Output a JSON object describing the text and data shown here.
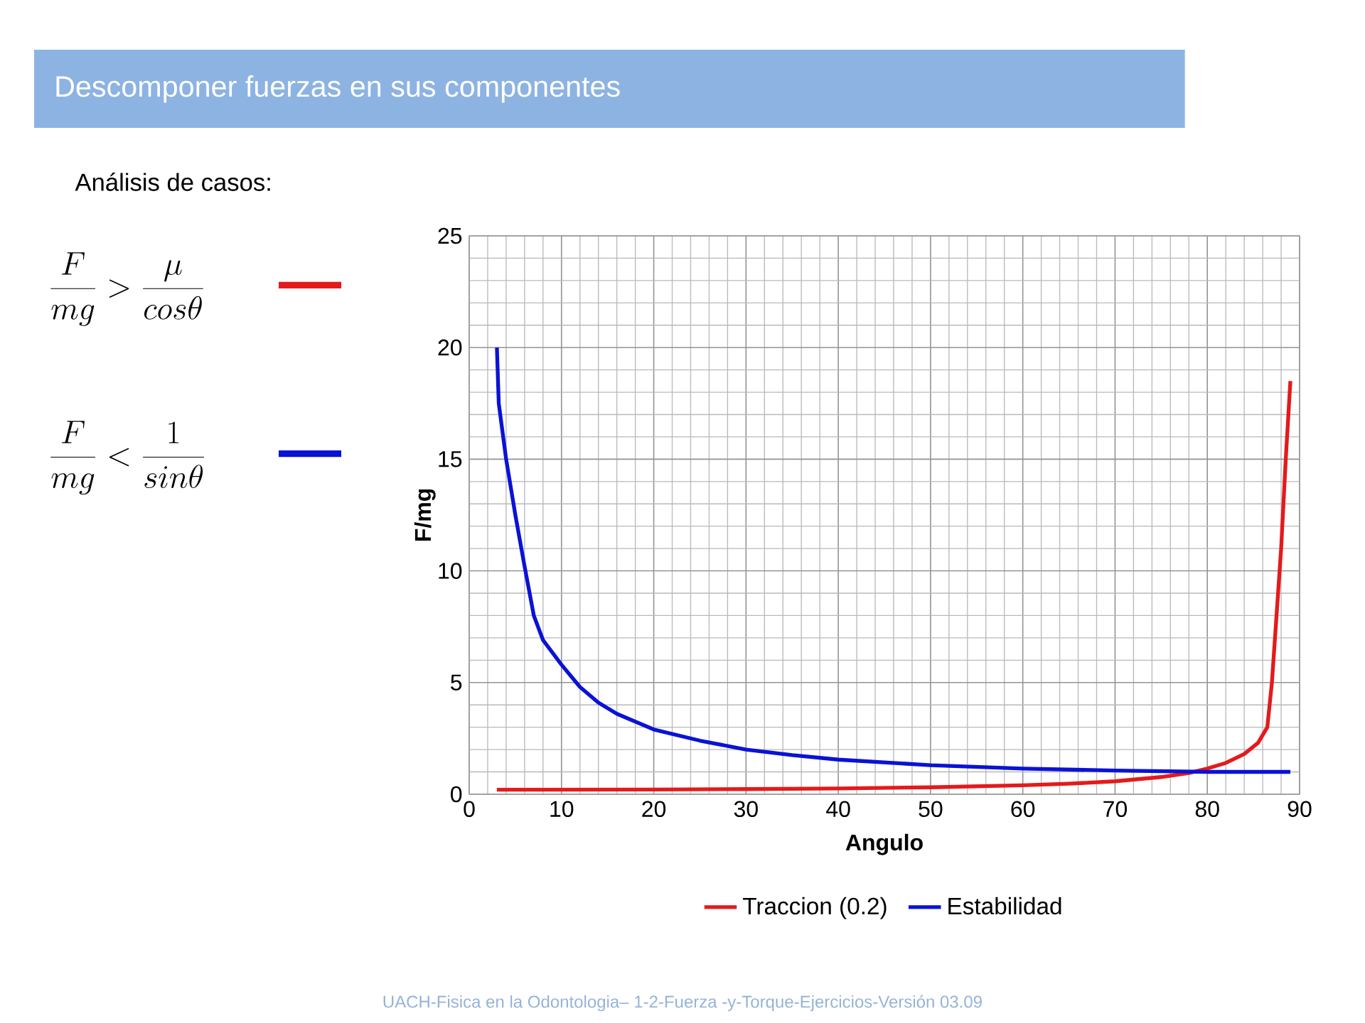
{
  "chart_data": {
    "type": "line",
    "title": "Descomponer fuerzas en sus componentes",
    "xlabel": "Angulo",
    "ylabel": "F/mg",
    "annotations": [
      "Análisis de casos:",
      "\\frac{F}{mg} > \\frac{\\mu}{cos\\theta}",
      "\\frac{F}{mg} < \\frac{1}{sin\\theta}",
      "UACH-Fisica en la Odontologia– 1-2-Fuerza -y-Torque-Ejercicios-Versión 03.09"
    ],
    "xlim": [
      0,
      90
    ],
    "ylim": [
      0,
      25
    ],
    "xticks": [
      0,
      10,
      20,
      30,
      40,
      50,
      60,
      70,
      80,
      90
    ],
    "yticks": [
      0,
      5,
      10,
      15,
      20,
      25
    ],
    "grid": true,
    "legend": "bottom",
    "marker": "none",
    "line_style": "solid",
    "series": [
      {
        "name": "Traccion (0.2)",
        "color": "#e41a1c",
        "x": [
          3,
          20,
          30,
          40,
          50,
          60,
          65,
          70,
          75,
          78,
          80,
          82,
          84,
          85.5,
          86.5,
          87,
          87.5,
          88,
          88.5,
          89
        ],
        "values": [
          0.2,
          0.21,
          0.23,
          0.26,
          0.31,
          0.4,
          0.47,
          0.58,
          0.77,
          0.95,
          1.15,
          1.4,
          1.8,
          2.3,
          3,
          5,
          8,
          11,
          15,
          18.5
        ]
      },
      {
        "name": "Estabilidad",
        "color": "#0a12d6",
        "x": [
          3,
          3.2,
          4,
          5,
          6,
          7,
          8,
          10,
          12,
          14,
          16,
          20,
          25,
          30,
          35,
          40,
          50,
          60,
          70,
          80,
          89
        ],
        "values": [
          20,
          17.5,
          15,
          12.5,
          10.2,
          8,
          6.9,
          5.8,
          4.8,
          4.1,
          3.6,
          2.9,
          2.4,
          2,
          1.75,
          1.55,
          1.3,
          1.15,
          1.06,
          1.0,
          1.0
        ]
      }
    ]
  }
}
